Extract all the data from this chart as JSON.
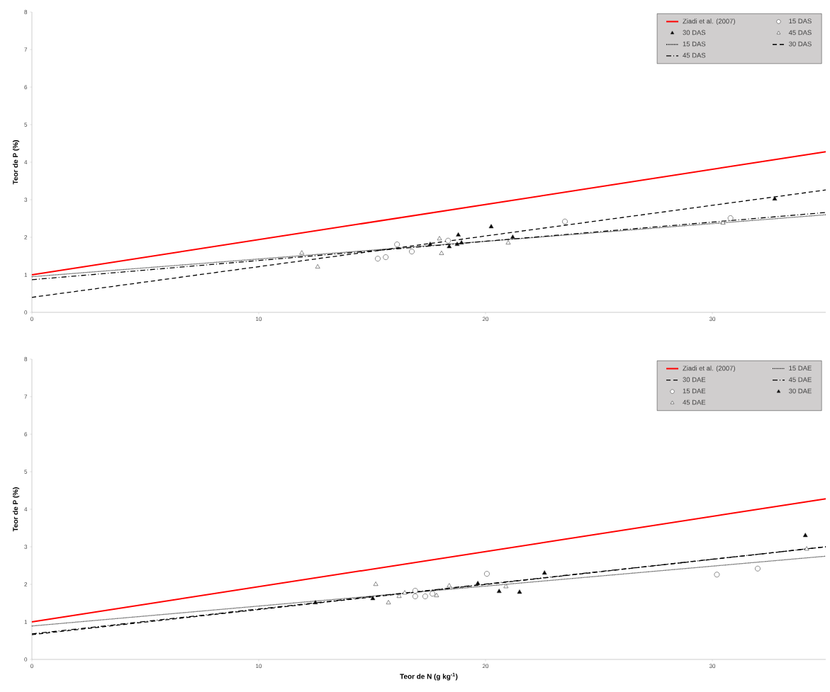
{
  "chart_data": [
    {
      "type": "scatter",
      "ylabel": "Teor de P (%)",
      "xlim": [
        0,
        35
      ],
      "ylim": [
        0,
        8
      ],
      "xticks": [
        0,
        10,
        20,
        30
      ],
      "yticks": [
        0,
        1,
        2,
        3,
        4,
        5,
        6,
        7,
        8
      ],
      "legend": "top right",
      "series": [
        {
          "type": "line",
          "name": "Ziadi  et al. (2007)",
          "color": "#ff0000",
          "line_style": "solid",
          "marker": "none",
          "x": [
            0,
            35
          ],
          "values": [
            1.0,
            4.28
          ]
        },
        {
          "type": "scatter",
          "name": "15 DAS",
          "color": "#ffffff",
          "marker": "circle",
          "x": [
            15.25,
            15.6,
            16.1,
            16.75,
            18.35,
            23.5,
            30.8
          ],
          "values": [
            1.43,
            1.47,
            1.81,
            1.62,
            1.91,
            2.42,
            2.51
          ]
        },
        {
          "type": "scatter",
          "name": "30 DAS",
          "color": "#000000",
          "marker": "triangle",
          "x": [
            17.56,
            18.4,
            18.8,
            18.75,
            18.94,
            20.25,
            21.2,
            32.75
          ],
          "values": [
            1.81,
            1.75,
            2.06,
            1.81,
            1.85,
            2.28,
            2.0,
            3.02
          ]
        },
        {
          "type": "scatter",
          "name": "45 DAS",
          "color": "#ffffff",
          "marker": "triangle",
          "x": [
            11.9,
            12.6,
            17.97,
            18.06,
            21.0,
            30.47
          ],
          "values": [
            1.58,
            1.21,
            1.96,
            1.57,
            1.85,
            2.38
          ]
        },
        {
          "type": "line",
          "name": "15 DAS",
          "color": "#000000",
          "line_style": "dotted",
          "marker": "none",
          "x": [
            0,
            35
          ],
          "values": [
            0.95,
            2.6
          ]
        },
        {
          "type": "line",
          "name": "30 DAS",
          "color": "#000000",
          "line_style": "dashed",
          "marker": "none",
          "x": [
            0,
            35
          ],
          "values": [
            0.4,
            3.26
          ]
        },
        {
          "type": "line",
          "name": "45 DAS",
          "color": "#000000",
          "line_style": "dashdot",
          "marker": "none",
          "x": [
            0,
            35
          ],
          "values": [
            0.87,
            2.66
          ]
        }
      ]
    },
    {
      "type": "scatter",
      "ylabel": "Teor de P (%)",
      "xlabel": "Teor de N (g kg$^{-1}$)",
      "xlim": [
        0,
        35
      ],
      "ylim": [
        0,
        8
      ],
      "xticks": [
        0,
        10,
        20,
        30
      ],
      "yticks": [
        0,
        1,
        2,
        3,
        4,
        5,
        6,
        7,
        8
      ],
      "legend": "top right",
      "series": [
        {
          "type": "line",
          "name": "Ziadi  et al. (2007)",
          "color": "#ff0000",
          "line_style": "solid",
          "marker": "none",
          "x": [
            0,
            35
          ],
          "values": [
            1.0,
            4.28
          ]
        },
        {
          "type": "line",
          "name": "15 DAE",
          "color": "#000000",
          "line_style": "dotted",
          "marker": "none",
          "x": [
            0,
            35
          ],
          "values": [
            0.89,
            2.75
          ]
        },
        {
          "type": "line",
          "name": "30 DAE",
          "color": "#000000",
          "line_style": "dashed",
          "marker": "none",
          "x": [
            0,
            35
          ],
          "values": [
            0.66,
            3.0
          ]
        },
        {
          "type": "line",
          "name": "45 DAE",
          "color": "#000000",
          "line_style": "dashdot",
          "marker": "none",
          "x": [
            0,
            35
          ],
          "values": [
            0.68,
            3.0
          ]
        },
        {
          "type": "scatter",
          "name": "15 DAE",
          "color": "#ffffff",
          "marker": "circle",
          "x": [
            16.9,
            16.9,
            17.34,
            17.66,
            20.06,
            30.2,
            32.0
          ],
          "values": [
            1.83,
            1.68,
            1.68,
            1.75,
            2.28,
            2.26,
            2.42
          ]
        },
        {
          "type": "scatter",
          "name": "30 DAE",
          "color": "#000000",
          "marker": "triangle",
          "x": [
            12.5,
            15.03,
            19.66,
            20.6,
            21.5,
            22.6,
            34.1
          ],
          "values": [
            1.51,
            1.62,
            2.02,
            1.81,
            1.79,
            2.3,
            3.3
          ]
        },
        {
          "type": "scatter",
          "name": "45 DAE",
          "color": "#ffffff",
          "marker": "triangle",
          "x": [
            15.16,
            15.72,
            16.19,
            16.44,
            17.84,
            18.4,
            20.9,
            34.16
          ],
          "values": [
            2.0,
            1.51,
            1.68,
            1.77,
            1.7,
            1.96,
            1.94,
            2.94
          ]
        }
      ]
    }
  ]
}
